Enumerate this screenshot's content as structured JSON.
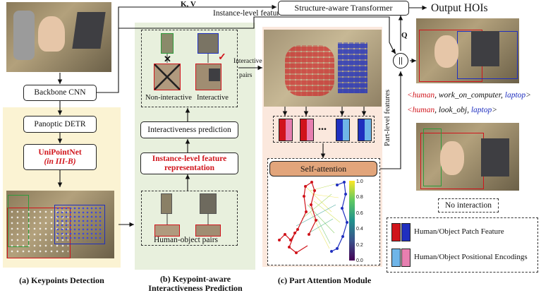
{
  "top": {
    "kv_label": "K, V",
    "instance_features_label": "Instance-level features",
    "transformer_label": "Structure-aware Transformer",
    "output_label": "Output HOIs",
    "q_label": "Q",
    "concat_symbol": "||"
  },
  "panel_a": {
    "backbone_label": "Backbone CNN",
    "detr_label": "Panoptic DETR",
    "unipointnet_label": "UniPointNet",
    "unipointnet_sub": "(in III-B)",
    "caption": "(a) Keypoints Detection"
  },
  "panel_b": {
    "non_interactive_label": "Non-interactive",
    "interactive_label": "Interactive",
    "cross_symbol": "✕",
    "check_symbol": "✓",
    "interactiveness_label": "Interactiveness prediction",
    "instance_feature_label_1": "Instance-level feature",
    "instance_feature_label_2": "representation",
    "pairs_label": "Human-object pairs",
    "interactive_pairs_label_1": "Interactive",
    "interactive_pairs_label_2": "pairs",
    "caption_1": "(b) Keypoint-aware",
    "caption_2": "Interactiveness Prediction"
  },
  "panel_c": {
    "ellipsis": "...",
    "self_attention_label": "Self-attention",
    "colorbar_ticks": [
      "1.0",
      "0.8",
      "0.6",
      "0.4",
      "0.2",
      "0.0"
    ],
    "part_features_label": "Part-level features",
    "caption": "(c) Part Attention Module"
  },
  "outputs": {
    "hoi1": {
      "subject": "<human",
      "verb": ", work_on_computer, ",
      "object": "laptop",
      "close": ">"
    },
    "hoi2": {
      "subject": "<human",
      "verb": ", look_obj, ",
      "object": "laptop",
      "close": ">"
    },
    "no_interaction_label": "No interaction"
  },
  "legend": {
    "patch_label": "Human/Object Patch Feature",
    "pos_label": "Human/Object Positional Encodings"
  },
  "colors": {
    "panel_a_bg": "#fbf3d3",
    "panel_b_bg": "#e8f0dd",
    "panel_c_bg": "#fbe8dd",
    "human_red": "#d0141b",
    "object_blue": "#1f2fbf",
    "pos_red": "#e77fb0",
    "pos_blue": "#6fb5e8",
    "self_attention_fill": "#e2a57b"
  }
}
